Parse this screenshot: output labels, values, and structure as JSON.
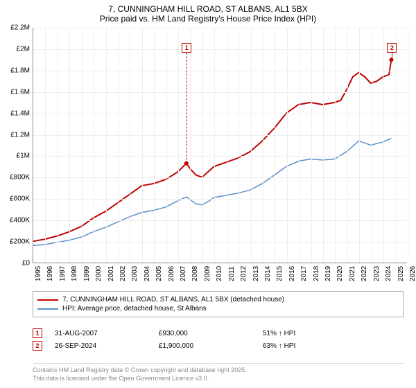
{
  "title": {
    "line1": "7, CUNNINGHAM HILL ROAD, ST ALBANS, AL1 5BX",
    "line2": "Price paid vs. HM Land Registry's House Price Index (HPI)"
  },
  "chart": {
    "type": "line",
    "background_color": "#ffffff",
    "grid_color": "#eeeeee",
    "axis_color": "#888888",
    "x_min": 1995,
    "x_max": 2026,
    "x_ticks": [
      1995,
      1996,
      1997,
      1998,
      1999,
      2000,
      2001,
      2002,
      2003,
      2004,
      2005,
      2006,
      2007,
      2008,
      2009,
      2010,
      2011,
      2012,
      2013,
      2014,
      2015,
      2016,
      2017,
      2018,
      2019,
      2020,
      2021,
      2022,
      2023,
      2024,
      2025,
      2026
    ],
    "y_min": 0,
    "y_max": 2200000,
    "y_ticks": [
      {
        "v": 0,
        "label": "£0"
      },
      {
        "v": 200000,
        "label": "£200K"
      },
      {
        "v": 400000,
        "label": "£400K"
      },
      {
        "v": 600000,
        "label": "£600K"
      },
      {
        "v": 800000,
        "label": "£800K"
      },
      {
        "v": 1000000,
        "label": "£1M"
      },
      {
        "v": 1200000,
        "label": "£1.2M"
      },
      {
        "v": 1400000,
        "label": "£1.4M"
      },
      {
        "v": 1600000,
        "label": "£1.6M"
      },
      {
        "v": 1800000,
        "label": "£1.8M"
      },
      {
        "v": 2000000,
        "label": "£2M"
      },
      {
        "v": 2200000,
        "label": "£2.2M"
      }
    ],
    "series": [
      {
        "name": "red",
        "color": "#c00000",
        "width": 2,
        "label": "7, CUNNINGHAM HILL ROAD, ST ALBANS, AL1 5BX (detached house)",
        "points": [
          [
            1995,
            200000
          ],
          [
            1996,
            220000
          ],
          [
            1997,
            250000
          ],
          [
            1998,
            290000
          ],
          [
            1999,
            340000
          ],
          [
            2000,
            420000
          ],
          [
            2001,
            480000
          ],
          [
            2002,
            560000
          ],
          [
            2003,
            640000
          ],
          [
            2004,
            720000
          ],
          [
            2005,
            740000
          ],
          [
            2006,
            780000
          ],
          [
            2007,
            850000
          ],
          [
            2007.7,
            930000
          ],
          [
            2008,
            880000
          ],
          [
            2008.5,
            820000
          ],
          [
            2009,
            800000
          ],
          [
            2009.5,
            850000
          ],
          [
            2010,
            900000
          ],
          [
            2011,
            940000
          ],
          [
            2012,
            980000
          ],
          [
            2013,
            1040000
          ],
          [
            2014,
            1140000
          ],
          [
            2015,
            1260000
          ],
          [
            2016,
            1400000
          ],
          [
            2017,
            1480000
          ],
          [
            2018,
            1500000
          ],
          [
            2019,
            1480000
          ],
          [
            2020,
            1500000
          ],
          [
            2020.5,
            1520000
          ],
          [
            2021,
            1620000
          ],
          [
            2021.5,
            1740000
          ],
          [
            2022,
            1780000
          ],
          [
            2022.5,
            1740000
          ],
          [
            2023,
            1680000
          ],
          [
            2023.5,
            1700000
          ],
          [
            2024,
            1740000
          ],
          [
            2024.5,
            1760000
          ],
          [
            2024.7,
            1900000
          ]
        ]
      },
      {
        "name": "blue",
        "color": "#5b8fc7",
        "width": 1.5,
        "label": "HPI: Average price, detached house, St Albans",
        "points": [
          [
            1995,
            160000
          ],
          [
            1996,
            170000
          ],
          [
            1997,
            190000
          ],
          [
            1998,
            210000
          ],
          [
            1999,
            240000
          ],
          [
            2000,
            290000
          ],
          [
            2001,
            330000
          ],
          [
            2002,
            380000
          ],
          [
            2003,
            430000
          ],
          [
            2004,
            470000
          ],
          [
            2005,
            490000
          ],
          [
            2006,
            520000
          ],
          [
            2007,
            580000
          ],
          [
            2007.7,
            615000
          ],
          [
            2008,
            590000
          ],
          [
            2008.5,
            550000
          ],
          [
            2009,
            540000
          ],
          [
            2009.5,
            570000
          ],
          [
            2010,
            610000
          ],
          [
            2011,
            630000
          ],
          [
            2012,
            650000
          ],
          [
            2013,
            680000
          ],
          [
            2014,
            740000
          ],
          [
            2015,
            820000
          ],
          [
            2016,
            900000
          ],
          [
            2017,
            950000
          ],
          [
            2018,
            970000
          ],
          [
            2019,
            960000
          ],
          [
            2020,
            970000
          ],
          [
            2021,
            1040000
          ],
          [
            2022,
            1140000
          ],
          [
            2022.5,
            1120000
          ],
          [
            2023,
            1100000
          ],
          [
            2024,
            1130000
          ],
          [
            2024.7,
            1165000
          ]
        ]
      }
    ],
    "markers": [
      {
        "id": "1",
        "x": 2007.7,
        "y_top": 2060000,
        "date": "31-AUG-2007",
        "price": "£930,000",
        "pct": "51% ↑ HPI"
      },
      {
        "id": "2",
        "x": 2024.7,
        "y_top": 2060000,
        "date": "26-SEP-2024",
        "price": "£1,900,000",
        "pct": "63% ↑ HPI"
      }
    ]
  },
  "legend": {
    "items": [
      {
        "color": "#c00000",
        "label": "7, CUNNINGHAM HILL ROAD, ST ALBANS, AL1 5BX (detached house)"
      },
      {
        "color": "#5b8fc7",
        "label": "HPI: Average price, detached house, St Albans"
      }
    ]
  },
  "footer": {
    "line1": "Contains HM Land Registry data © Crown copyright and database right 2025.",
    "line2": "This data is licensed under the Open Government Licence v3.0."
  }
}
